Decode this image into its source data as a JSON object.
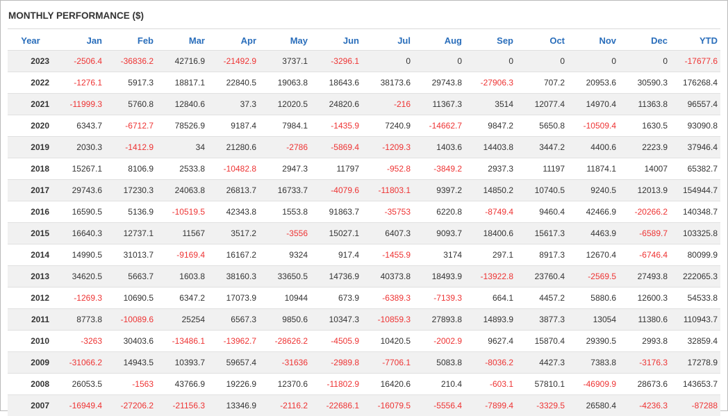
{
  "title": "MONTHLY PERFORMANCE ($)",
  "colors": {
    "header_text": "#2a6ebb",
    "negative": "#ee3333",
    "row_stripe": "#f1f1f1"
  },
  "columns": [
    "Year",
    "Jan",
    "Feb",
    "Mar",
    "Apr",
    "May",
    "Jun",
    "Jul",
    "Aug",
    "Sep",
    "Oct",
    "Nov",
    "Dec",
    "YTD"
  ],
  "rows": [
    [
      "2023",
      "-2506.4",
      "-36836.2",
      "42716.9",
      "-21492.9",
      "3737.1",
      "-3296.1",
      "0",
      "0",
      "0",
      "0",
      "0",
      "0",
      "-17677.6"
    ],
    [
      "2022",
      "-1276.1",
      "5917.3",
      "18817.1",
      "22840.5",
      "19063.8",
      "18643.6",
      "38173.6",
      "29743.8",
      "-27906.3",
      "707.2",
      "20953.6",
      "30590.3",
      "176268.4"
    ],
    [
      "2021",
      "-11999.3",
      "5760.8",
      "12840.6",
      "37.3",
      "12020.5",
      "24820.6",
      "-216",
      "11367.3",
      "3514",
      "12077.4",
      "14970.4",
      "11363.8",
      "96557.4"
    ],
    [
      "2020",
      "6343.7",
      "-6712.7",
      "78526.9",
      "9187.4",
      "7984.1",
      "-1435.9",
      "7240.9",
      "-14662.7",
      "9847.2",
      "5650.8",
      "-10509.4",
      "1630.5",
      "93090.8"
    ],
    [
      "2019",
      "2030.3",
      "-1412.9",
      "34",
      "21280.6",
      "-2786",
      "-5869.4",
      "-1209.3",
      "1403.6",
      "14403.8",
      "3447.2",
      "4400.6",
      "2223.9",
      "37946.4"
    ],
    [
      "2018",
      "15267.1",
      "8106.9",
      "2533.8",
      "-10482.8",
      "2947.3",
      "11797",
      "-952.8",
      "-3849.2",
      "2937.3",
      "11197",
      "11874.1",
      "14007",
      "65382.7"
    ],
    [
      "2017",
      "29743.6",
      "17230.3",
      "24063.8",
      "26813.7",
      "16733.7",
      "-4079.6",
      "-11803.1",
      "9397.2",
      "14850.2",
      "10740.5",
      "9240.5",
      "12013.9",
      "154944.7"
    ],
    [
      "2016",
      "16590.5",
      "5136.9",
      "-10519.5",
      "42343.8",
      "1553.8",
      "91863.7",
      "-35753",
      "6220.8",
      "-8749.4",
      "9460.4",
      "42466.9",
      "-20266.2",
      "140348.7"
    ],
    [
      "2015",
      "16640.3",
      "12737.1",
      "11567",
      "3517.2",
      "-3556",
      "15027.1",
      "6407.3",
      "9093.7",
      "18400.6",
      "15617.3",
      "4463.9",
      "-6589.7",
      "103325.8"
    ],
    [
      "2014",
      "14990.5",
      "31013.7",
      "-9169.4",
      "16167.2",
      "9324",
      "917.4",
      "-1455.9",
      "3174",
      "297.1",
      "8917.3",
      "12670.4",
      "-6746.4",
      "80099.9"
    ],
    [
      "2013",
      "34620.5",
      "5663.7",
      "1603.8",
      "38160.3",
      "33650.5",
      "14736.9",
      "40373.8",
      "18493.9",
      "-13922.8",
      "23760.4",
      "-2569.5",
      "27493.8",
      "222065.3"
    ],
    [
      "2012",
      "-1269.3",
      "10690.5",
      "6347.2",
      "17073.9",
      "10944",
      "673.9",
      "-6389.3",
      "-7139.3",
      "664.1",
      "4457.2",
      "5880.6",
      "12600.3",
      "54533.8"
    ],
    [
      "2011",
      "8773.8",
      "-10089.6",
      "25254",
      "6567.3",
      "9850.6",
      "10347.3",
      "-10859.3",
      "27893.8",
      "14893.9",
      "3877.3",
      "13054",
      "11380.6",
      "110943.7"
    ],
    [
      "2010",
      "-3263",
      "30403.6",
      "-13486.1",
      "-13962.7",
      "-28626.2",
      "-4505.9",
      "10420.5",
      "-2002.9",
      "9627.4",
      "15870.4",
      "29390.5",
      "2993.8",
      "32859.4"
    ],
    [
      "2009",
      "-31066.2",
      "14943.5",
      "10393.7",
      "59657.4",
      "-31636",
      "-2989.8",
      "-7706.1",
      "5083.8",
      "-8036.2",
      "4427.3",
      "7383.8",
      "-3176.3",
      "17278.9"
    ],
    [
      "2008",
      "26053.5",
      "-1563",
      "43766.9",
      "19226.9",
      "12370.6",
      "-11802.9",
      "16420.6",
      "210.4",
      "-603.1",
      "57810.1",
      "-46909.9",
      "28673.6",
      "143653.7"
    ],
    [
      "2007",
      "-16949.4",
      "-27206.2",
      "-21156.3",
      "13346.9",
      "-2116.2",
      "-22686.1",
      "-16079.5",
      "-5556.4",
      "-7899.4",
      "-3329.5",
      "26580.4",
      "-4236.3",
      "-87288"
    ]
  ]
}
